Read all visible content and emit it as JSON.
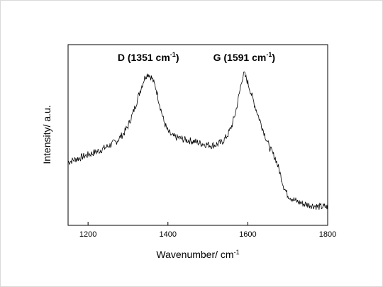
{
  "chart_data": {
    "type": "line",
    "xlabel": "Wavenumber/ cm",
    "xlabel_sup": "-1",
    "ylabel": "Intensity/ a.u.",
    "xlim": [
      1150,
      1800
    ],
    "ylim": [
      0,
      1
    ],
    "x_ticks": [
      1200,
      1400,
      1600,
      1800
    ],
    "y_ticks": [],
    "grid": false,
    "legend": "none",
    "line_color": "#000000",
    "annotations": [
      {
        "name": "peak-d",
        "text": "D (1351 cm",
        "sup": "-1",
        "close": ")",
        "x": 1351
      },
      {
        "name": "peak-g",
        "text": "G (1591 cm",
        "sup": "-1",
        "close": ")",
        "x": 1591
      }
    ],
    "series": [
      {
        "x": [
          1150,
          1170,
          1190,
          1210,
          1230,
          1250,
          1270,
          1290,
          1300,
          1310,
          1320,
          1330,
          1340,
          1345,
          1351,
          1360,
          1370,
          1380,
          1390,
          1400,
          1410,
          1420,
          1430,
          1440,
          1450,
          1460,
          1470,
          1480,
          1490,
          1500,
          1510,
          1520,
          1530,
          1540,
          1550,
          1560,
          1570,
          1580,
          1585,
          1591,
          1600,
          1610,
          1620,
          1630,
          1640,
          1650,
          1660,
          1670,
          1680,
          1690,
          1700,
          1710,
          1720,
          1730,
          1740,
          1750,
          1760,
          1770,
          1780,
          1790,
          1800
        ],
        "values": [
          0.35,
          0.37,
          0.39,
          0.41,
          0.43,
          0.46,
          0.49,
          0.55,
          0.6,
          0.67,
          0.75,
          0.84,
          0.92,
          0.95,
          0.96,
          0.93,
          0.86,
          0.74,
          0.63,
          0.56,
          0.53,
          0.52,
          0.515,
          0.505,
          0.5,
          0.495,
          0.49,
          0.48,
          0.475,
          0.47,
          0.465,
          0.47,
          0.48,
          0.5,
          0.54,
          0.6,
          0.7,
          0.84,
          0.92,
          0.96,
          0.9,
          0.81,
          0.72,
          0.64,
          0.56,
          0.48,
          0.42,
          0.37,
          0.28,
          0.18,
          0.12,
          0.1,
          0.08,
          0.07,
          0.06,
          0.055,
          0.05,
          0.045,
          0.04,
          0.04,
          0.04
        ]
      }
    ]
  }
}
